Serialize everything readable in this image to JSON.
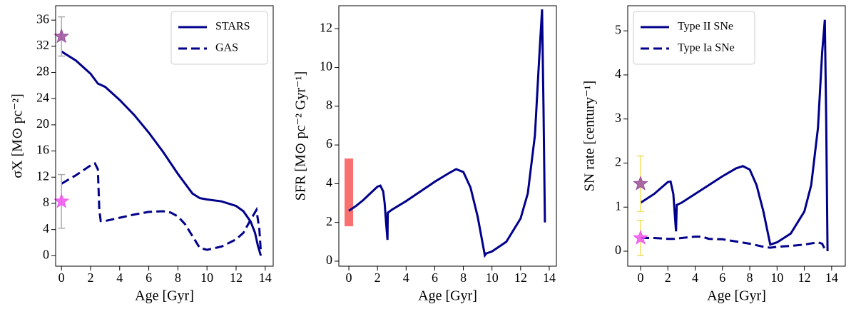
{
  "chart_data": [
    {
      "type": "line",
      "xlabel": "Age [Gyr]",
      "ylabel": "σX [M⊙ pc⁻²]",
      "xlim": [
        -0.4,
        14.55
      ],
      "ylim": [
        -1.6,
        38.2
      ],
      "xticks": [
        0,
        2,
        4,
        6,
        8,
        10,
        12,
        14
      ],
      "yticks": [
        0,
        4,
        8,
        12,
        16,
        20,
        24,
        28,
        32,
        36
      ],
      "legend": "upper right",
      "series": [
        {
          "name": "STARS",
          "color": "#00008b",
          "dash": "solid",
          "x": [
            0,
            1,
            2,
            2.5,
            3,
            4,
            5,
            6,
            7,
            8,
            9,
            9.5,
            10,
            11,
            12,
            12.5,
            13,
            13.3,
            13.5,
            13.7
          ],
          "values": [
            31.2,
            29.8,
            27.8,
            26.3,
            25.8,
            23.8,
            21.5,
            18.8,
            15.8,
            12.5,
            9.5,
            8.8,
            8.6,
            8.3,
            7.6,
            6.8,
            5.2,
            3.5,
            1.5,
            0
          ]
        },
        {
          "name": "GAS",
          "color": "#00008b",
          "dash": "dashed",
          "x": [
            0,
            1,
            2,
            2.3,
            2.5,
            2.6,
            2.7,
            3,
            4,
            5,
            6,
            7,
            7.5,
            8,
            8.5,
            9,
            9.5,
            10,
            11,
            12,
            12.5,
            13,
            13.4,
            13.6,
            13.7
          ],
          "values": [
            11,
            12.3,
            13.8,
            14.1,
            13.2,
            7,
            5.3,
            5.3,
            5.8,
            6.3,
            6.7,
            6.8,
            6.6,
            6.0,
            4.8,
            3.0,
            1.2,
            0.9,
            1.4,
            2.5,
            3.5,
            5.5,
            7.0,
            4,
            0.5
          ]
        }
      ],
      "points": [
        {
          "x": 0,
          "y": 33.5,
          "error": 3.0,
          "color": "#9b4f9b",
          "ecolor": "#aaaaaa"
        },
        {
          "x": 0,
          "y": 8.3,
          "error": 4.1,
          "color": "#ee55ee",
          "ecolor": "#aaaaaa"
        }
      ]
    },
    {
      "type": "line",
      "xlabel": "Age [Gyr]",
      "ylabel": "SFR [M⊙ pc⁻² Gyr⁻¹]",
      "xlim": [
        -0.7,
        14.5
      ],
      "ylim": [
        -0.26,
        13.19
      ],
      "xticks": [
        0,
        2,
        4,
        6,
        8,
        10,
        12,
        14
      ],
      "yticks": [
        0,
        2,
        4,
        6,
        8,
        10,
        12
      ],
      "bands": [
        {
          "x": 0,
          "ymin": 1.8,
          "ymax": 5.3,
          "color": "#f87070"
        }
      ],
      "series": [
        {
          "color": "#00008b",
          "dash": "solid",
          "x": [
            0,
            0.5,
            1,
            1.5,
            2,
            2.2,
            2.4,
            2.5,
            2.6,
            2.7,
            2.72,
            3,
            4,
            5,
            6,
            7,
            7.5,
            8,
            8.5,
            9,
            9.5,
            9.6,
            10,
            11,
            12,
            12.5,
            13,
            13.3,
            13.5,
            13.6,
            13.7
          ],
          "values": [
            2.6,
            2.85,
            3.15,
            3.5,
            3.85,
            3.9,
            3.6,
            3.0,
            2.0,
            1.1,
            2.5,
            2.65,
            3.1,
            3.6,
            4.1,
            4.55,
            4.75,
            4.6,
            3.8,
            2.3,
            0.3,
            0.4,
            0.5,
            1.0,
            2.2,
            3.5,
            6.5,
            10.5,
            13,
            8,
            2
          ]
        }
      ]
    },
    {
      "type": "line",
      "xlabel": "Age [Gyr]",
      "ylabel": "SN rate [century⁻¹]",
      "xlim": [
        -0.94,
        15.0
      ],
      "ylim": [
        -0.34,
        5.57
      ],
      "xticks": [
        0,
        2,
        4,
        6,
        8,
        10,
        12,
        14
      ],
      "yticks": [
        0,
        1,
        2,
        3,
        4,
        5
      ],
      "legend": "upper left",
      "series": [
        {
          "name": "Type II SNe",
          "color": "#00008b",
          "dash": "solid",
          "x": [
            0,
            1,
            2,
            2.2,
            2.4,
            2.6,
            2.65,
            3,
            4,
            5,
            6,
            7,
            7.5,
            8,
            8.5,
            9,
            9.5,
            10,
            11,
            12,
            12.5,
            13,
            13.3,
            13.5,
            13.6,
            13.7
          ],
          "values": [
            1.1,
            1.3,
            1.57,
            1.58,
            1.3,
            0.45,
            1.05,
            1.1,
            1.3,
            1.5,
            1.7,
            1.88,
            1.93,
            1.85,
            1.5,
            0.9,
            0.15,
            0.2,
            0.4,
            0.9,
            1.5,
            2.8,
            4.5,
            5.25,
            3,
            0
          ]
        },
        {
          "name": "Type Ia SNe",
          "color": "#00008b",
          "dash": "dashed",
          "x": [
            0,
            1,
            2,
            2.5,
            3,
            4,
            4.5,
            5,
            6,
            7,
            8,
            9,
            9.5,
            10,
            11,
            12,
            13,
            13.3,
            13.5,
            13.7
          ],
          "values": [
            0.3,
            0.3,
            0.28,
            0.28,
            0.3,
            0.33,
            0.33,
            0.28,
            0.27,
            0.22,
            0.17,
            0.1,
            0.08,
            0.1,
            0.12,
            0.15,
            0.2,
            0.17,
            0.05,
            0.02
          ]
        }
      ],
      "points": [
        {
          "x": 0,
          "y": 1.53,
          "error": 0.63,
          "color": "#9b4f9b",
          "ecolor": "#f0e060"
        },
        {
          "x": 0,
          "y": 0.3,
          "error": 0.4,
          "color": "#ee55ee",
          "ecolor": "#f0e060"
        }
      ]
    }
  ]
}
